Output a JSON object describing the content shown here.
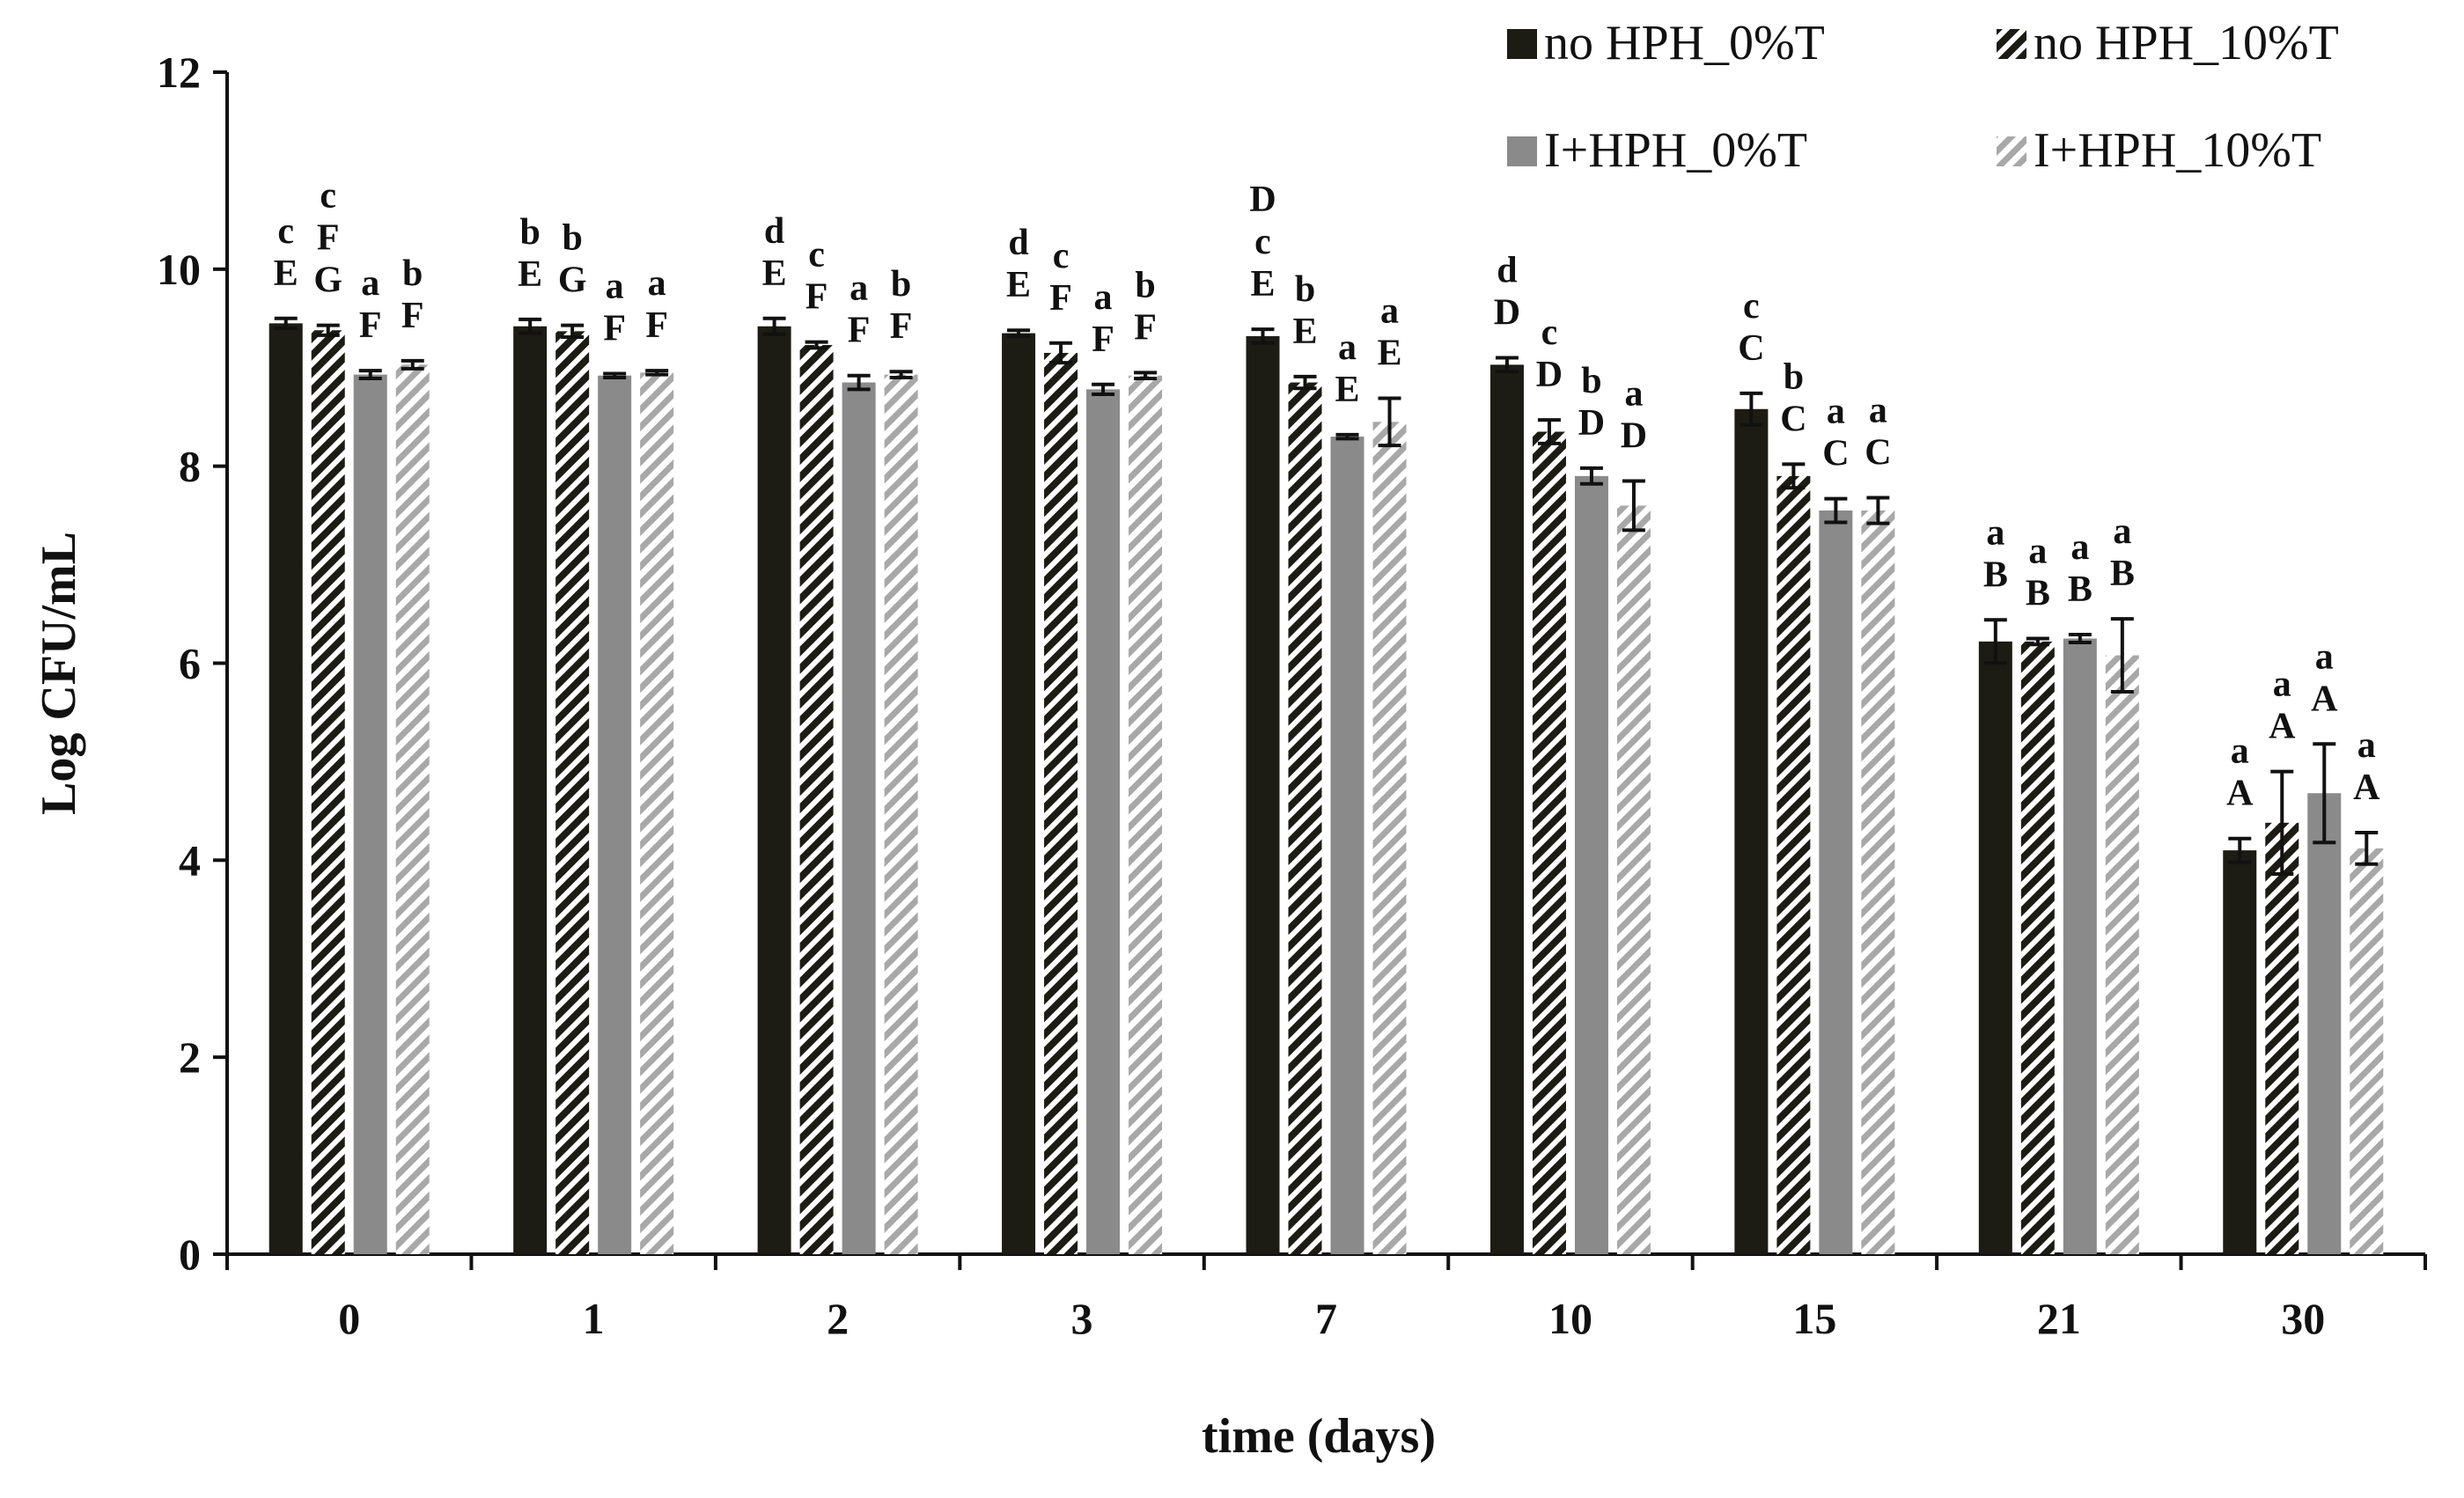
{
  "chart_data": {
    "type": "bar",
    "title": "",
    "xlabel": "time (days)",
    "ylabel": "Log CFU/mL",
    "ylim": [
      0,
      12
    ],
    "yticks": [
      0,
      2,
      4,
      6,
      8,
      10,
      12
    ],
    "grid": false,
    "legend_position": "top-right",
    "categories": [
      "0",
      "1",
      "2",
      "3",
      "7",
      "10",
      "15",
      "21",
      "30"
    ],
    "series": [
      {
        "name": "no HPH_0%T",
        "color": "#1c1c14",
        "pattern": "solid",
        "values": [
          9.45,
          9.42,
          9.42,
          9.35,
          9.32,
          9.03,
          8.58,
          6.22,
          4.1
        ],
        "errors": [
          0.05,
          0.07,
          0.08,
          0.03,
          0.07,
          0.07,
          0.16,
          0.22,
          0.12
        ],
        "letters_upper": [
          "E",
          "E",
          "E",
          "E",
          "E",
          "D",
          "C",
          "B",
          "A"
        ],
        "letters_lower": [
          "c",
          "b",
          "d",
          "d",
          "D c",
          "d",
          "c",
          "a",
          "a"
        ]
      },
      {
        "name": "no HPH_10%T",
        "color": "#1c1c14",
        "pattern": "dark-hatch",
        "values": [
          9.38,
          9.37,
          9.23,
          9.15,
          8.85,
          8.35,
          7.9,
          6.22,
          4.38
        ],
        "errors": [
          0.05,
          0.06,
          0.03,
          0.1,
          0.06,
          0.12,
          0.12,
          0.03,
          0.52
        ],
        "letters_upper": [
          "G",
          "G",
          "F",
          "F",
          "E",
          "D",
          "C",
          "B",
          "A"
        ],
        "letters_lower": [
          "c F",
          "b",
          "c",
          "c",
          "b",
          "c",
          "b",
          "a",
          "a"
        ]
      },
      {
        "name": "I+HPH_0%T",
        "color": "#8a8a8a",
        "pattern": "solid",
        "values": [
          8.93,
          8.92,
          8.85,
          8.78,
          8.3,
          7.9,
          7.55,
          6.25,
          4.68
        ],
        "errors": [
          0.04,
          0.02,
          0.07,
          0.05,
          0.02,
          0.08,
          0.12,
          0.04,
          0.5
        ],
        "letters_upper": [
          "F",
          "F",
          "F",
          "F",
          "E",
          "D",
          "C",
          "B",
          "A"
        ],
        "letters_lower": [
          "a",
          "a",
          "a",
          "a",
          "a",
          "b",
          "a",
          "a",
          "a"
        ]
      },
      {
        "name": "I+HPH_10%T",
        "color": "#a8a8a8",
        "pattern": "light-hatch",
        "values": [
          9.03,
          8.95,
          8.93,
          8.92,
          8.45,
          7.6,
          7.55,
          6.08,
          4.12
        ],
        "errors": [
          0.04,
          0.02,
          0.03,
          0.03,
          0.24,
          0.25,
          0.13,
          0.37,
          0.16
        ],
        "letters_upper": [
          "F",
          "F",
          "F",
          "F",
          "E",
          "D",
          "C",
          "B",
          "A"
        ],
        "letters_lower": [
          "b",
          "a",
          "b",
          "b",
          "a",
          "a",
          "a",
          "a",
          "a"
        ]
      }
    ]
  }
}
